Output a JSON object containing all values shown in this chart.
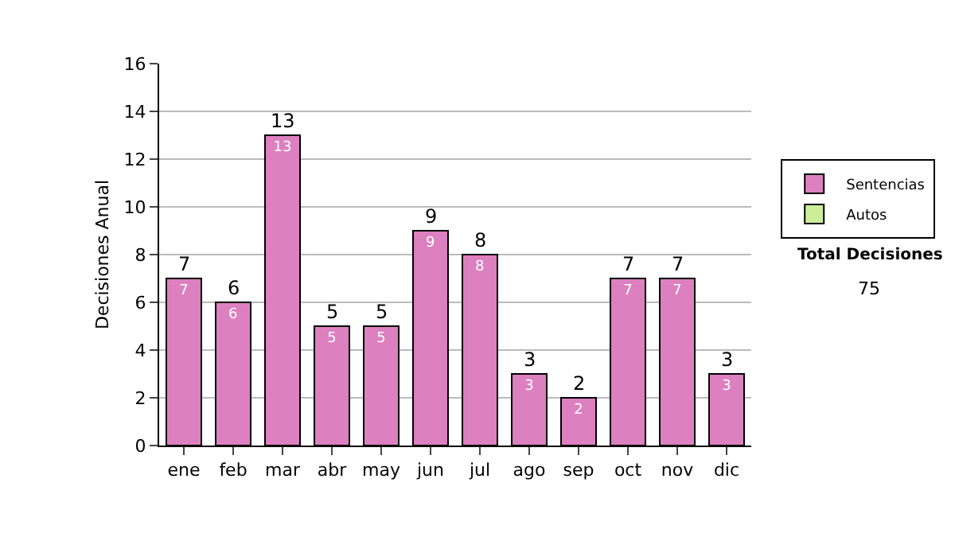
{
  "chart_data": {
    "type": "bar",
    "ylabel": "Decisiones Anual",
    "categories": [
      "ene",
      "feb",
      "mar",
      "abr",
      "may",
      "jun",
      "jul",
      "ago",
      "sep",
      "oct",
      "nov",
      "dic"
    ],
    "series": [
      {
        "name": "Sentencias",
        "color": "#dd80c0",
        "values": [
          7,
          6,
          13,
          5,
          5,
          9,
          8,
          3,
          2,
          7,
          7,
          3
        ]
      },
      {
        "name": "Autos",
        "color": "#ccee99",
        "values": [
          null,
          null,
          null,
          null,
          null,
          null,
          null,
          null,
          null,
          null,
          null,
          null
        ]
      }
    ],
    "stacked": true,
    "data_labels": true,
    "totals": [
      "7",
      "6",
      "13",
      "5",
      "5",
      "9",
      "8",
      "3",
      "2",
      "7",
      "7",
      "3"
    ],
    "ylim": [
      0,
      16
    ],
    "yticks": [
      0,
      2,
      4,
      6,
      8,
      10,
      12,
      14,
      16
    ],
    "grid": "y",
    "legend": "right",
    "annotations": [
      "Total Decisiones",
      "75"
    ]
  }
}
